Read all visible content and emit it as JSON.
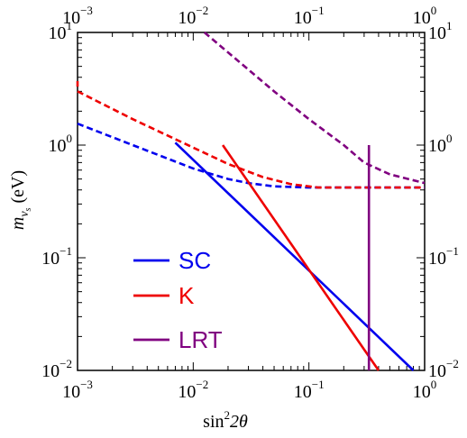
{
  "chart_data": {
    "type": "line",
    "x_scale": "log",
    "y_scale": "log",
    "xlim": [
      0.001,
      1
    ],
    "ylim": [
      0.01,
      10
    ],
    "x_ticks": [
      {
        "base": "10",
        "exp": "−3",
        "value": 0.001
      },
      {
        "base": "10",
        "exp": "−2",
        "value": 0.01
      },
      {
        "base": "10",
        "exp": "−1",
        "value": 0.1
      },
      {
        "base": "10",
        "exp": "0",
        "value": 1
      }
    ],
    "y_ticks": [
      {
        "base": "10",
        "exp": "−2",
        "value": 0.01
      },
      {
        "base": "10",
        "exp": "−1",
        "value": 0.1
      },
      {
        "base": "10",
        "exp": "0",
        "value": 1
      },
      {
        "base": "10",
        "exp": "1",
        "value": 10
      }
    ],
    "xlabel": {
      "main": "sin",
      "sup": "2",
      "tail": "2θ"
    },
    "ylabel": {
      "main": "m",
      "sub": "ν",
      "subsub": "s",
      "unit": " (eV)"
    },
    "legend": [
      {
        "label": "SC",
        "color": "#0000ee"
      },
      {
        "label": "K",
        "color": "#ee0000"
      },
      {
        "label": "LRT",
        "color": "#800080"
      }
    ],
    "series": [
      {
        "name": "SC",
        "style": "dashed",
        "color": "#0000ee",
        "points": [
          [
            0.001,
            1.55
          ],
          [
            0.003,
            1.0
          ],
          [
            0.01,
            0.62
          ],
          [
            0.02,
            0.5
          ],
          [
            0.03,
            0.46
          ],
          [
            0.05,
            0.43
          ],
          [
            0.1,
            0.42
          ],
          [
            0.3,
            0.42
          ],
          [
            1,
            0.42
          ]
        ]
      },
      {
        "name": "SC",
        "style": "solid",
        "color": "#0000ee",
        "points": [
          [
            0.007,
            1.05
          ],
          [
            0.8,
            0.01
          ]
        ]
      },
      {
        "name": "K",
        "style": "dashed",
        "color": "#ee0000",
        "points": [
          [
            0.001,
            3.0
          ],
          [
            0.003,
            1.7
          ],
          [
            0.01,
            0.95
          ],
          [
            0.02,
            0.68
          ],
          [
            0.04,
            0.52
          ],
          [
            0.07,
            0.45
          ],
          [
            0.12,
            0.42
          ],
          [
            0.3,
            0.42
          ],
          [
            1,
            0.42
          ]
        ]
      },
      {
        "name": "K",
        "style": "dashed",
        "color": "#ee0000",
        "points": [
          [
            0.001,
            3.7
          ],
          [
            0.001,
            3.3
          ]
        ]
      },
      {
        "name": "K",
        "style": "solid",
        "color": "#ee0000",
        "points": [
          [
            0.018,
            1.0
          ],
          [
            0.4,
            0.01
          ]
        ]
      },
      {
        "name": "LRT",
        "style": "dashed",
        "color": "#800080",
        "points": [
          [
            0.0125,
            10
          ],
          [
            0.05,
            3.0
          ],
          [
            0.1,
            1.7
          ],
          [
            0.2,
            1.0
          ],
          [
            0.3,
            0.7
          ],
          [
            0.5,
            0.55
          ],
          [
            1,
            0.46
          ]
        ]
      },
      {
        "name": "LRT",
        "style": "solid",
        "color": "#800080",
        "points": [
          [
            0.33,
            1.0
          ],
          [
            0.33,
            0.01
          ]
        ]
      }
    ]
  }
}
